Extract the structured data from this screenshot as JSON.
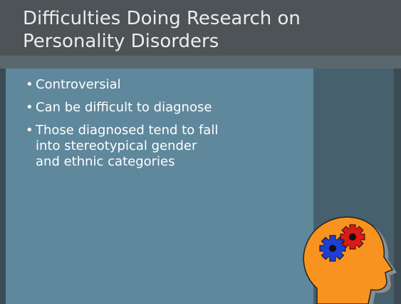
{
  "title": [
    "Difficulties Doing Research on",
    "Personality Disorders"
  ],
  "bullets": [
    "Controversial",
    "Can be difficult to diagnose",
    "Those diagnosed tend to fall into stereotypical gender and ethnic categories"
  ]
}
